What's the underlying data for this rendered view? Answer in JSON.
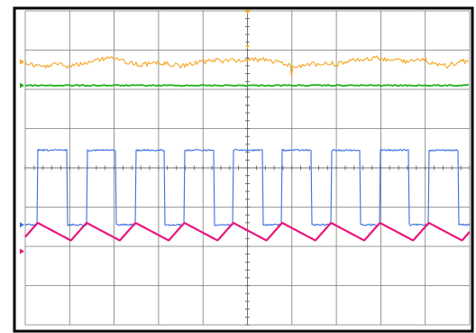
{
  "chart_data": {
    "type": "line",
    "title": "",
    "xlabel": "",
    "ylabel": "",
    "x_divisions": 10,
    "y_divisions": 8,
    "grid": true,
    "series": [
      {
        "name": "",
        "color": "#f5a623",
        "waveform": "noisy",
        "level_div": 1.3,
        "noise_div": 0.12
      },
      {
        "name": "",
        "color": "#22b022",
        "waveform": "flat",
        "level_div": 1.9
      },
      {
        "name": "",
        "color": "#3b6fe0",
        "waveform": "square",
        "high_div": 3.55,
        "low_div": 5.45,
        "period_div": 1.1,
        "duty": 0.6,
        "phase_div": 0.28
      },
      {
        "name": "",
        "color": "#e8167a",
        "waveform": "triangle",
        "high_div": 5.4,
        "low_div": 5.85,
        "period_div": 1.1,
        "peak_frac": 0.68,
        "phase_div": 0.28
      }
    ]
  }
}
